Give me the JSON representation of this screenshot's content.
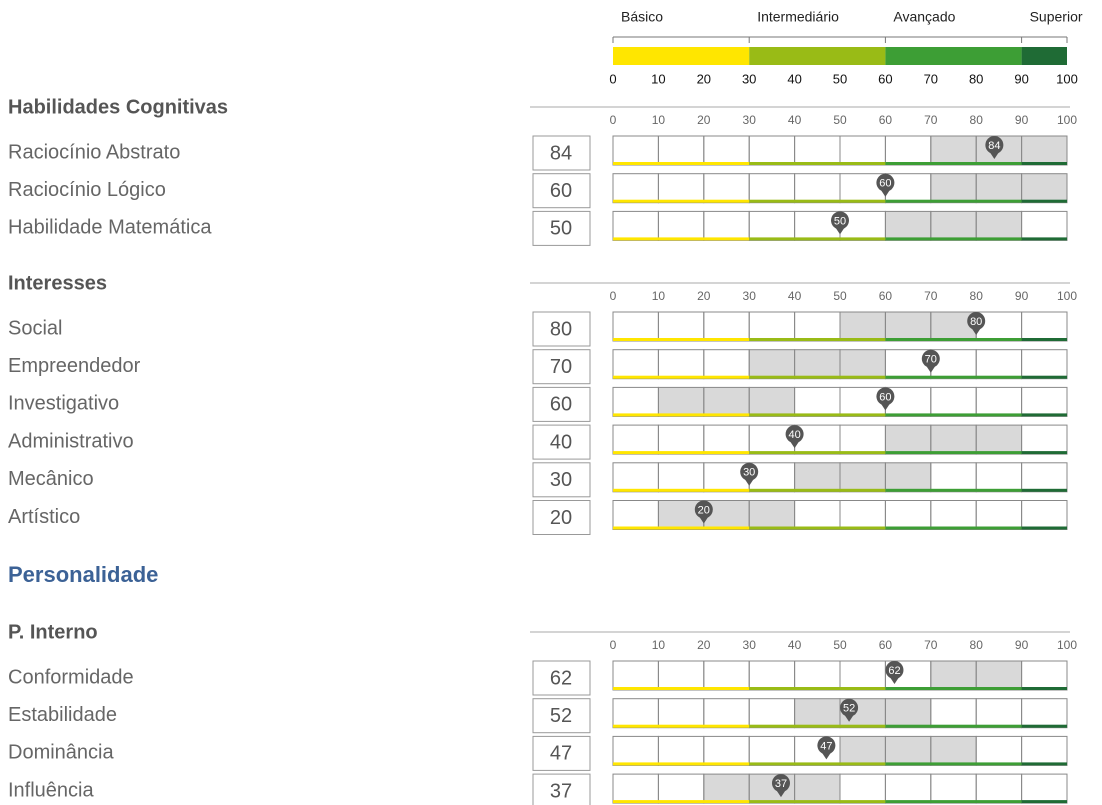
{
  "xlim": [
    0,
    100
  ],
  "legend": {
    "levels": [
      {
        "label": "Básico",
        "from": 0,
        "to": 30,
        "color": "#ffe600"
      },
      {
        "label": "Intermediário",
        "from": 30,
        "to": 60,
        "color": "#99bb16"
      },
      {
        "label": "Avançado",
        "from": 60,
        "to": 90,
        "color": "#3d9e35"
      },
      {
        "label": "Superior",
        "from": 90,
        "to": 100,
        "color": "#1f6b35"
      }
    ],
    "ticks": [
      0,
      10,
      20,
      30,
      40,
      50,
      60,
      70,
      80,
      90,
      100
    ]
  },
  "sections": [
    {
      "title": "Habilidades Cognitivas",
      "ticks": [
        0,
        10,
        20,
        30,
        40,
        50,
        60,
        70,
        80,
        90,
        100
      ],
      "rows": [
        {
          "label": "Raciocínio Abstrato",
          "score": 84,
          "range": [
            70,
            100
          ]
        },
        {
          "label": "Raciocínio Lógico",
          "score": 60,
          "range": [
            70,
            100
          ]
        },
        {
          "label": "Habilidade Matemática",
          "score": 50,
          "range": [
            60,
            90
          ]
        }
      ]
    },
    {
      "title": "Interesses",
      "ticks": [
        0,
        10,
        20,
        30,
        40,
        50,
        60,
        70,
        80,
        90,
        100
      ],
      "rows": [
        {
          "label": "Social",
          "score": 80,
          "range": [
            50,
            80
          ]
        },
        {
          "label": "Empreendedor",
          "score": 70,
          "range": [
            30,
            60
          ]
        },
        {
          "label": "Investigativo",
          "score": 60,
          "range": [
            10,
            40
          ]
        },
        {
          "label": "Administrativo",
          "score": 40,
          "range": [
            60,
            90
          ]
        },
        {
          "label": "Mecânico",
          "score": 30,
          "range": [
            40,
            70
          ]
        },
        {
          "label": "Artístico",
          "score": 20,
          "range": [
            10,
            40
          ]
        }
      ]
    }
  ],
  "personality": {
    "title": "Personalidade",
    "sections": [
      {
        "title": "P. Interno",
        "ticks": [
          0,
          10,
          20,
          30,
          40,
          50,
          60,
          70,
          80,
          90,
          100
        ],
        "rows": [
          {
            "label": "Conformidade",
            "score": 62,
            "range": [
              70,
              90
            ]
          },
          {
            "label": "Estabilidade",
            "score": 52,
            "range": [
              40,
              70
            ]
          },
          {
            "label": "Dominância",
            "score": 47,
            "range": [
              50,
              80
            ]
          },
          {
            "label": "Influência",
            "score": 37,
            "range": [
              20,
              50
            ]
          }
        ]
      }
    ]
  }
}
